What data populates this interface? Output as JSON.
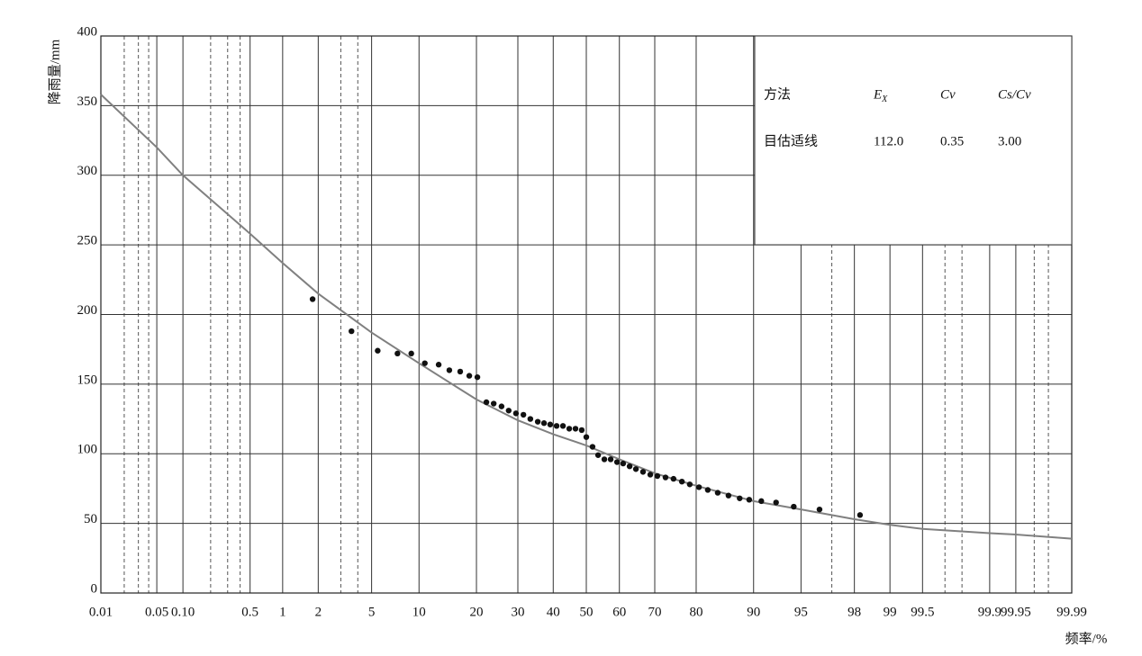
{
  "chart_data": {
    "type": "scatter",
    "y_label": "降雨量/mm",
    "x_label": "频率/%",
    "x_scale": "normal-probability",
    "xlim": [
      0.01,
      99.99
    ],
    "ylim": [
      0,
      400
    ],
    "yticks": [
      0,
      50,
      100,
      150,
      200,
      250,
      300,
      350,
      400
    ],
    "xticks": [
      0.01,
      0.05,
      {
        "value": 0.1,
        "label": "0.10"
      },
      0.5,
      1,
      2,
      5,
      10,
      20,
      30,
      40,
      50,
      60,
      70,
      80,
      90,
      95,
      98,
      99,
      99.5,
      99.9,
      99.95,
      99.99
    ],
    "xticks_minor": [
      0.02,
      0.03,
      0.04,
      0.2,
      0.3,
      0.4,
      3,
      4,
      97,
      99.7,
      99.8,
      99.97,
      99.98
    ],
    "grid": true,
    "color": "#111111",
    "x": [
      1.8,
      3.6,
      5.5,
      7.4,
      9.0,
      10.8,
      12.9,
      14.7,
      16.7,
      18.5,
      20.2,
      22.2,
      23.9,
      25.8,
      27.6,
      29.5,
      31.5,
      33.4,
      35.5,
      37.3,
      39.1,
      41.0,
      42.9,
      44.8,
      46.7,
      48.6,
      50.0,
      51.9,
      53.6,
      55.5,
      57.4,
      59.3,
      61.1,
      63.0,
      64.8,
      66.8,
      68.8,
      70.7,
      72.8,
      74.8,
      76.8,
      78.6,
      80.6,
      82.4,
      84.3,
      86.2,
      88.0,
      89.4,
      91.0,
      92.7,
      94.4,
      96.3,
      98.2
    ],
    "values": [
      211,
      188,
      174,
      172,
      172,
      165,
      164,
      160,
      159,
      156,
      155,
      137,
      136,
      134,
      131,
      129,
      128,
      125,
      123,
      122,
      121,
      120,
      120,
      118,
      118,
      117,
      112,
      105,
      99,
      96,
      96,
      94,
      93,
      91,
      89,
      87,
      85,
      84,
      83,
      82,
      80,
      78,
      76,
      74,
      72,
      70,
      68,
      67,
      66,
      65,
      62,
      60,
      56
    ],
    "fit": {
      "color": "#808080",
      "x": [
        0.01,
        0.05,
        0.1,
        0.5,
        1,
        2,
        5,
        10,
        20,
        30,
        40,
        50,
        60,
        70,
        80,
        90,
        95,
        98,
        99,
        99.5,
        99.9,
        99.95,
        99.99
      ],
      "values": [
        358,
        320,
        300,
        258,
        237,
        215,
        187,
        165,
        139,
        124,
        114,
        106,
        96,
        86,
        77,
        66,
        60,
        53,
        49,
        46,
        43,
        42,
        39
      ]
    },
    "table": {
      "header": [
        "方法",
        "E",
        "Cv",
        "Cs/Cv"
      ],
      "header_sub": "X",
      "row": [
        "目估适线",
        "112.0",
        "0.35",
        "3.00"
      ]
    }
  }
}
